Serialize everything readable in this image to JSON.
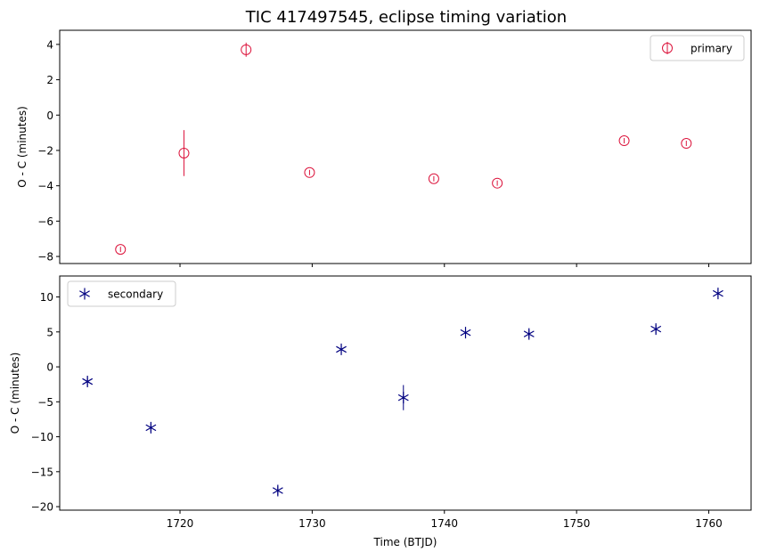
{
  "figure": {
    "title": "TIC 417497545, eclipse timing variation"
  },
  "colors": {
    "primary": "#dc143c",
    "secondary": "#000080",
    "axes": "#000000"
  },
  "chart_data": [
    {
      "type": "scatter",
      "panel": "top",
      "ylabel": "O - C (minutes)",
      "xlim": [
        1710.9,
        1763.2
      ],
      "ylim": [
        -8.4,
        4.8
      ],
      "xticks": [
        1720,
        1730,
        1740,
        1750,
        1760
      ],
      "yticks": [
        -8,
        -6,
        -4,
        -2,
        0,
        2,
        4
      ],
      "legend": {
        "position": "top-right",
        "label": "primary"
      },
      "marker": "circle",
      "series": [
        {
          "name": "primary",
          "x": [
            1715.5,
            1720.3,
            1725.0,
            1729.8,
            1739.2,
            1744.0,
            1753.6,
            1758.3
          ],
          "y": [
            -7.6,
            -2.15,
            3.7,
            -3.25,
            -3.6,
            -3.85,
            -1.45,
            -1.6
          ],
          "yerr": [
            0.15,
            1.3,
            0.4,
            0.15,
            0.15,
            0.15,
            0.15,
            0.15
          ]
        }
      ]
    },
    {
      "type": "scatter",
      "panel": "bottom",
      "xlabel": "Time (BTJD)",
      "ylabel": "O - C (minutes)",
      "xlim": [
        1710.9,
        1763.2
      ],
      "ylim": [
        -20.5,
        13.0
      ],
      "xticks": [
        1720,
        1730,
        1740,
        1750,
        1760
      ],
      "yticks": [
        -20,
        -15,
        -10,
        -5,
        0,
        5,
        10
      ],
      "legend": {
        "position": "top-left",
        "label": "secondary"
      },
      "marker": "x-star",
      "series": [
        {
          "name": "secondary",
          "x": [
            1713.0,
            1717.8,
            1727.4,
            1732.2,
            1736.9,
            1741.6,
            1746.4,
            1756.0,
            1760.7
          ],
          "y": [
            -2.1,
            -8.7,
            -17.7,
            2.5,
            -4.4,
            4.9,
            4.7,
            5.4,
            10.5
          ],
          "yerr": [
            0.6,
            0.6,
            0.6,
            0.6,
            1.8,
            0.6,
            0.6,
            0.6,
            0.6
          ]
        }
      ]
    }
  ]
}
